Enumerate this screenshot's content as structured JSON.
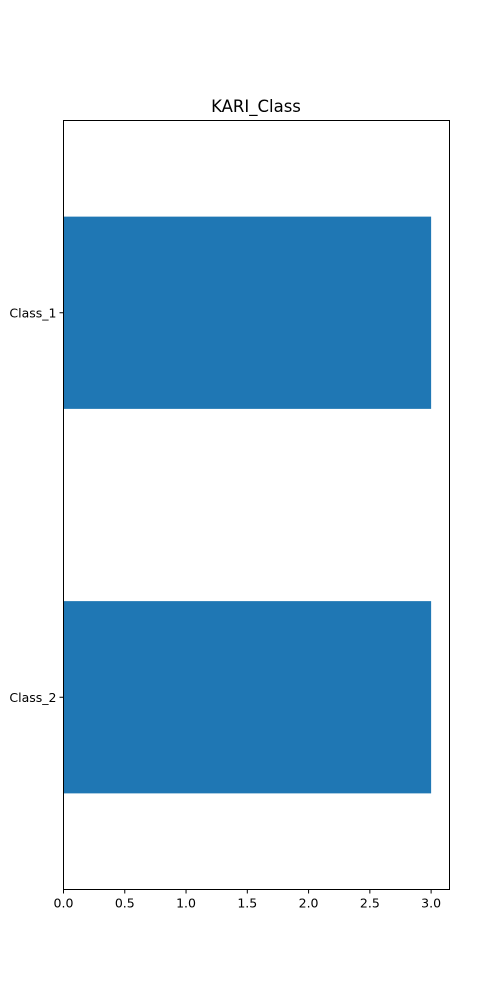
{
  "chart_data": {
    "type": "bar",
    "orientation": "horizontal",
    "title": "KARI_Class",
    "xlabel": "",
    "ylabel": "",
    "categories": [
      "Class_1",
      "Class_2"
    ],
    "values": [
      3,
      3
    ],
    "xlim": [
      0,
      3.15
    ],
    "xticks": [
      0.0,
      0.5,
      1.0,
      1.5,
      2.0,
      2.5,
      3.0
    ],
    "xtick_labels": [
      "0.0",
      "0.5",
      "1.0",
      "1.5",
      "2.0",
      "2.5",
      "3.0"
    ],
    "grid": false,
    "legend": "none",
    "bar_color": "#1f77b4"
  }
}
